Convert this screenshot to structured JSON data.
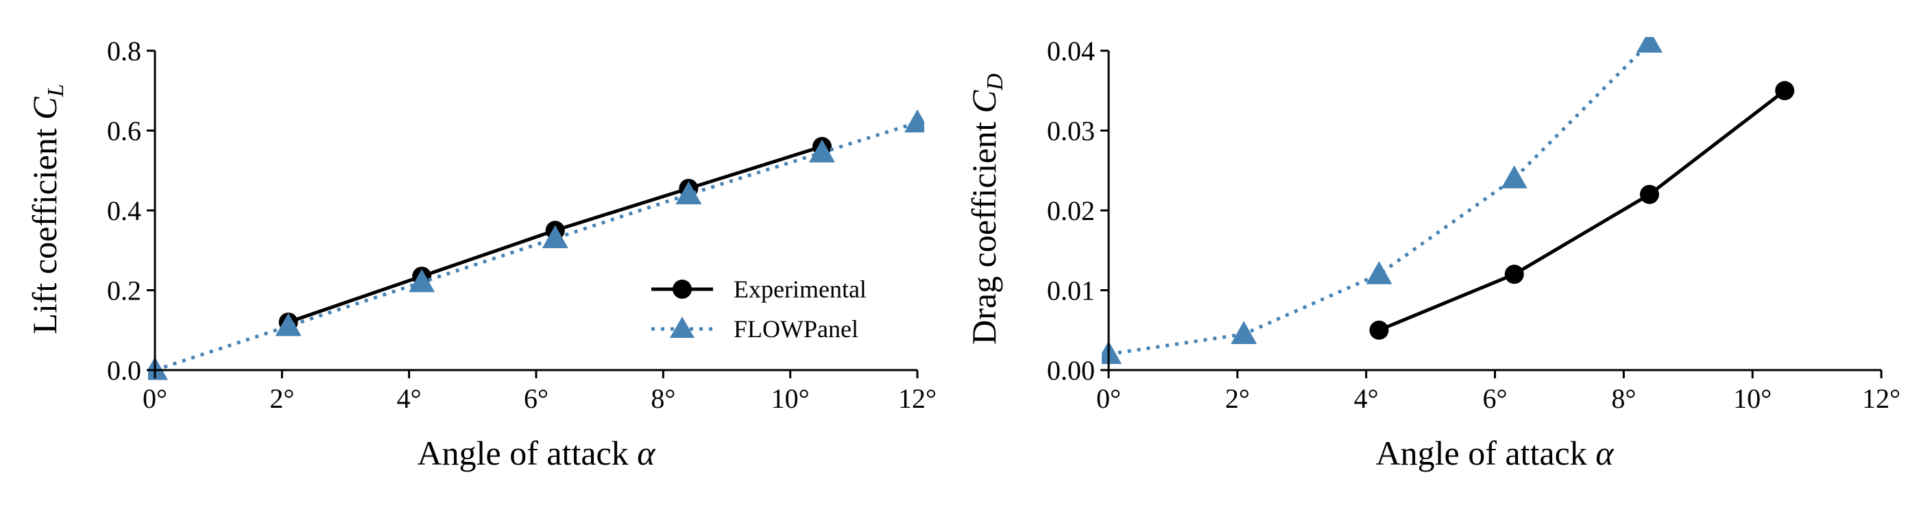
{
  "chart_data": [
    {
      "type": "line",
      "xlabel": "Angle of attack",
      "xlabel_symbol": "α",
      "ylabel": "Lift coefficient",
      "ylabel_symbol": "C",
      "ylabel_subscript": "L",
      "xlim": [
        0,
        12
      ],
      "ylim": [
        0,
        0.8
      ],
      "xticks": [
        0,
        2,
        4,
        6,
        8,
        10,
        12
      ],
      "xtick_labels": [
        "0°",
        "2°",
        "4°",
        "6°",
        "8°",
        "10°",
        "12°"
      ],
      "yticks": [
        0,
        0.2,
        0.4,
        0.6,
        0.8
      ],
      "ytick_labels": [
        "0.0",
        "0.2",
        "0.4",
        "0.6",
        "0.8"
      ],
      "grid": false,
      "legend": "lower-right",
      "series": [
        {
          "name": "Experimental",
          "color": "#000000",
          "line": "solid",
          "marker": "circle",
          "x": [
            2.1,
            4.2,
            6.3,
            8.4,
            10.5
          ],
          "y": [
            0.12,
            0.235,
            0.35,
            0.455,
            0.56
          ]
        },
        {
          "name": "FLOWPanel",
          "color": "#4682b4",
          "line": "dotted",
          "marker": "triangle",
          "x": [
            0,
            2.1,
            4.2,
            6.3,
            8.4,
            10.5,
            12
          ],
          "y": [
            0.0,
            0.11,
            0.22,
            0.33,
            0.44,
            0.545,
            0.62
          ]
        }
      ]
    },
    {
      "type": "line",
      "xlabel": "Angle of attack",
      "xlabel_symbol": "α",
      "ylabel": "Drag coefficient",
      "ylabel_symbol": "C",
      "ylabel_subscript": "D",
      "xlim": [
        0,
        12
      ],
      "ylim": [
        0,
        0.04
      ],
      "xticks": [
        0,
        2,
        4,
        6,
        8,
        10,
        12
      ],
      "xtick_labels": [
        "0°",
        "2°",
        "4°",
        "6°",
        "8°",
        "10°",
        "12°"
      ],
      "yticks": [
        0,
        0.01,
        0.02,
        0.03,
        0.04
      ],
      "ytick_labels": [
        "0.00",
        "0.01",
        "0.02",
        "0.03",
        "0.04"
      ],
      "grid": false,
      "series": [
        {
          "name": "Experimental",
          "color": "#000000",
          "line": "solid",
          "marker": "circle",
          "x": [
            4.2,
            6.3,
            8.4,
            10.5
          ],
          "y": [
            0.005,
            0.012,
            0.022,
            0.035
          ]
        },
        {
          "name": "FLOWPanel",
          "color": "#4682b4",
          "line": "dotted",
          "marker": "triangle",
          "x": [
            0,
            2.1,
            4.2,
            6.3,
            8.4
          ],
          "y": [
            0.002,
            0.0045,
            0.012,
            0.024,
            0.041
          ]
        }
      ]
    }
  ]
}
